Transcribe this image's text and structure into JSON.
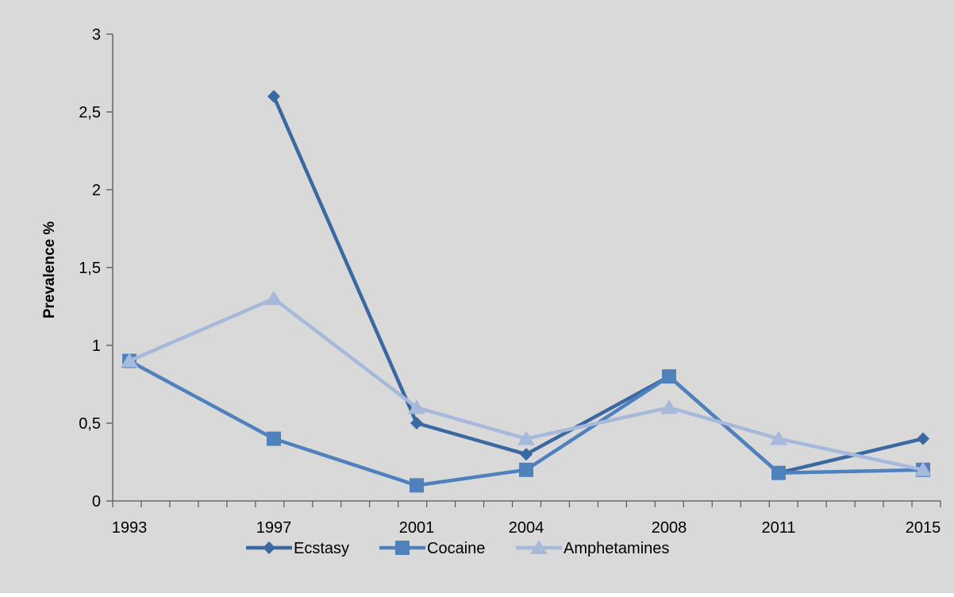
{
  "chart_data": {
    "type": "line",
    "title": "",
    "xlabel": "",
    "ylabel": "Prevalence %",
    "categories": [
      "1993",
      "1997",
      "2001",
      "2004",
      "2008",
      "2011",
      "2015"
    ],
    "ylim": [
      0,
      3
    ],
    "yticks": [
      "0",
      "0,5",
      "1",
      "1,5",
      "2",
      "2,5",
      "3"
    ],
    "grid": false,
    "legend_position": "bottom",
    "series": [
      {
        "name": "Ecstasy",
        "marker": "diamond",
        "color": "#3a68a0",
        "values": [
          null,
          2.6,
          0.5,
          0.3,
          0.8,
          0.18,
          0.4
        ]
      },
      {
        "name": "Cocaine",
        "marker": "square",
        "color": "#4f81bd",
        "values": [
          0.9,
          0.4,
          0.1,
          0.2,
          0.8,
          0.18,
          0.2
        ]
      },
      {
        "name": "Amphetamines",
        "marker": "triangle",
        "color": "#a7b9da",
        "values": [
          0.9,
          1.3,
          0.6,
          0.4,
          0.6,
          0.4,
          0.2
        ]
      }
    ],
    "background": "#d9d9d9"
  }
}
